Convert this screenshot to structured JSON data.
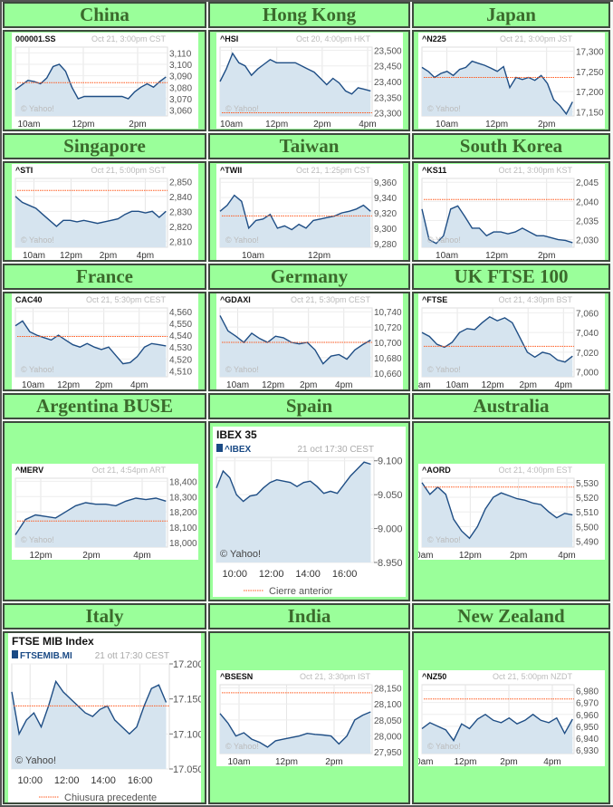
{
  "watermark": "© Yahoo!",
  "colors": {
    "cell_bg": "#9aff9a",
    "header_text": "#3b6a2c",
    "line": "#1f4e85",
    "fill": "#d6e4ef",
    "prev_close": "#ff5a1f"
  },
  "chart_data": [
    {
      "type": "area",
      "title": "China",
      "ticker": "000001.SS",
      "timestamp": "Oct 21, 3:00pm CST",
      "xlim": [
        9.5,
        15.1
      ],
      "xticks": [
        10,
        12,
        14
      ],
      "xlabels": [
        "10am",
        "12pm",
        "2pm"
      ],
      "ylim": [
        3055,
        3115
      ],
      "yticks": [
        3110,
        3100,
        3090,
        3080,
        3070,
        3060
      ],
      "ylabels": [
        "3,110",
        "3,100",
        "3,090",
        "3,080",
        "3,070",
        "3,060"
      ],
      "prev_close": 3084,
      "values": [
        3078,
        3082,
        3086,
        3085,
        3083,
        3088,
        3098,
        3100,
        3094,
        3080,
        3070,
        3072,
        3072,
        3072,
        3072,
        3072,
        3072,
        3072,
        3070,
        3076,
        3080,
        3083,
        3080,
        3085,
        3089
      ]
    },
    {
      "type": "area",
      "title": "Hong Kong",
      "ticker": "^HSI",
      "timestamp": "Oct 20, 4:00pm HKT",
      "xlim": [
        9.5,
        16.2
      ],
      "xticks": [
        10,
        12,
        14,
        16
      ],
      "xlabels": [
        "10am",
        "12pm",
        "2pm",
        "4pm"
      ],
      "ylim": [
        23290,
        23510
      ],
      "yticks": [
        23500,
        23450,
        23400,
        23350,
        23300
      ],
      "ylabels": [
        "23,500",
        "23,450",
        "23,400",
        "23,350",
        "23,300"
      ],
      "prev_close": 23300,
      "values": [
        23400,
        23440,
        23490,
        23460,
        23450,
        23420,
        23440,
        23455,
        23470,
        23460,
        23460,
        23460,
        23460,
        23450,
        23440,
        23430,
        23410,
        23390,
        23410,
        23395,
        23370,
        23360,
        23380,
        23375,
        23370
      ]
    },
    {
      "type": "area",
      "title": "Japan",
      "ticker": "^N225",
      "timestamp": "Oct 21, 3:00pm JST",
      "xlim": [
        9,
        15.1
      ],
      "xticks": [
        10,
        12,
        14
      ],
      "xlabels": [
        "10am",
        "12pm",
        "2pm"
      ],
      "ylim": [
        17140,
        17310
      ],
      "yticks": [
        17300,
        17250,
        17200,
        17150
      ],
      "ylabels": [
        "17,300",
        "17,250",
        "17,200",
        "17,150"
      ],
      "prev_close": 17235,
      "values": [
        17260,
        17250,
        17235,
        17245,
        17250,
        17240,
        17255,
        17260,
        17275,
        17270,
        17265,
        17258,
        17250,
        17262,
        17210,
        17235,
        17230,
        17235,
        17228,
        17240,
        17220,
        17180,
        17165,
        17145,
        17175
      ]
    },
    {
      "type": "area",
      "title": "Singapore",
      "ticker": "^STI",
      "timestamp": "Oct 21, 5:00pm SGT",
      "xlim": [
        9,
        17.2
      ],
      "xticks": [
        10,
        12,
        14,
        16
      ],
      "xlabels": [
        "10am",
        "12pm",
        "2pm",
        "4pm"
      ],
      "ylim": [
        2806,
        2852
      ],
      "yticks": [
        2850,
        2840,
        2830,
        2820,
        2810
      ],
      "ylabels": [
        "2,850",
        "2,840",
        "2,830",
        "2,820",
        "2,810"
      ],
      "prev_close": 2844,
      "values": [
        2840,
        2836,
        2834,
        2832,
        2828,
        2824,
        2820,
        2824,
        2824,
        2823,
        2824,
        2823,
        2822,
        2823,
        2824,
        2825,
        2828,
        2830,
        2830,
        2829,
        2830,
        2826,
        2830
      ]
    },
    {
      "type": "area",
      "title": "Taiwan",
      "ticker": "^TWII",
      "timestamp": "Oct 21, 1:25pm CST",
      "xlim": [
        9,
        13.6
      ],
      "xticks": [
        10,
        12
      ],
      "xlabels": [
        "10am",
        "12pm"
      ],
      "ylim": [
        9275,
        9365
      ],
      "yticks": [
        9360,
        9340,
        9320,
        9300,
        9280
      ],
      "ylabels": [
        "9,360",
        "9,340",
        "9,320",
        "9,300",
        "9,280"
      ],
      "prev_close": 9316,
      "values": [
        9322,
        9330,
        9343,
        9335,
        9300,
        9310,
        9312,
        9318,
        9300,
        9303,
        9298,
        9305,
        9300,
        9310,
        9312,
        9314,
        9316,
        9320,
        9322,
        9325,
        9330,
        9322
      ]
    },
    {
      "type": "area",
      "title": "South Korea",
      "ticker": "^KS11",
      "timestamp": "Oct 21, 3:00pm KST",
      "xlim": [
        9,
        15.1
      ],
      "xticks": [
        10,
        12,
        14
      ],
      "xlabels": [
        "10am",
        "12pm",
        "2pm"
      ],
      "ylim": [
        2028,
        2046
      ],
      "yticks": [
        2045,
        2040,
        2035,
        2030
      ],
      "ylabels": [
        "2,045",
        "2,040",
        "2,035",
        "2,030"
      ],
      "prev_close": 2040.5,
      "values": [
        2038,
        2030,
        2029,
        2031,
        2038,
        2038.8,
        2036,
        2033,
        2033,
        2031,
        2032,
        2032,
        2031.5,
        2032,
        2033,
        2032,
        2031,
        2031,
        2030.5,
        2030,
        2029.8,
        2029.2
      ]
    },
    {
      "type": "area",
      "title": "France",
      "ticker": "CAC40",
      "timestamp": "Oct 21, 5:30pm CEST",
      "xlim": [
        9,
        17.6
      ],
      "xticks": [
        10,
        12,
        14,
        16
      ],
      "xlabels": [
        "10am",
        "12pm",
        "2pm",
        "4pm"
      ],
      "ylim": [
        4505,
        4563
      ],
      "yticks": [
        4560,
        4550,
        4540,
        4530,
        4520,
        4510
      ],
      "ylabels": [
        "4,560",
        "4,550",
        "4,540",
        "4,530",
        "4,520",
        "4,510"
      ],
      "prev_close": 4539,
      "values": [
        4548,
        4552,
        4543,
        4540,
        4538,
        4536,
        4540,
        4536,
        4532,
        4530,
        4533,
        4530,
        4528,
        4530,
        4523,
        4516,
        4517,
        4522,
        4530,
        4533,
        4532,
        4531
      ]
    },
    {
      "type": "area",
      "title": "Germany",
      "ticker": "^GDAXI",
      "timestamp": "Oct 21, 5:30pm CEST",
      "xlim": [
        9,
        17.6
      ],
      "xticks": [
        10,
        12,
        14,
        16
      ],
      "xlabels": [
        "10am",
        "12pm",
        "2pm",
        "4pm"
      ],
      "ylim": [
        10655,
        10745
      ],
      "yticks": [
        10740,
        10720,
        10700,
        10680,
        10660
      ],
      "ylabels": [
        "10,740",
        "10,720",
        "10,700",
        "10,680",
        "10,660"
      ],
      "prev_close": 10700,
      "values": [
        10735,
        10715,
        10708,
        10700,
        10712,
        10705,
        10700,
        10708,
        10706,
        10700,
        10698,
        10700,
        10690,
        10672,
        10682,
        10684,
        10678,
        10690,
        10697,
        10703
      ]
    },
    {
      "type": "area",
      "title": "UK FTSE 100",
      "ticker": "^FTSE",
      "timestamp": "Oct 21, 4:30pm BST",
      "xlim": [
        8,
        16.6
      ],
      "xticks": [
        8,
        10,
        12,
        14,
        16
      ],
      "xlabels": [
        "8am",
        "10am",
        "12pm",
        "2pm",
        "4pm"
      ],
      "ylim": [
        6995,
        7065
      ],
      "yticks": [
        7060,
        7040,
        7020,
        7000
      ],
      "ylabels": [
        "7,060",
        "7,040",
        "7,020",
        "7,000"
      ],
      "prev_close": 7026,
      "values": [
        7040,
        7036,
        7028,
        7025,
        7030,
        7040,
        7044,
        7043,
        7050,
        7056,
        7052,
        7055,
        7050,
        7035,
        7020,
        7015,
        7020,
        7018,
        7012,
        7010,
        7016
      ]
    },
    {
      "type": "area",
      "title": "Argentina BUSE",
      "ticker": "^MERV",
      "timestamp": "Oct 21, 4:54pm  ART",
      "xlim": [
        11,
        17
      ],
      "xticks": [
        12,
        14,
        16
      ],
      "xlabels": [
        "12pm",
        "2pm",
        "4pm"
      ],
      "ylim": [
        17970,
        18420
      ],
      "yticks": [
        18400,
        18300,
        18200,
        18100,
        18000
      ],
      "ylabels": [
        "18,400",
        "18,300",
        "18,200",
        "18,100",
        "18,000"
      ],
      "prev_close": 18140,
      "values": [
        18050,
        18150,
        18180,
        18170,
        18160,
        18200,
        18240,
        18260,
        18250,
        18250,
        18240,
        18270,
        18290,
        18280,
        18290,
        18270
      ]
    },
    {
      "type": "area",
      "style": "large",
      "title": "Spain",
      "name": "IBEX 35",
      "ticker": "^IBEX",
      "timestamp": "21 oct 17:30 CEST",
      "legend": "Cierre anterior",
      "xlim": [
        9,
        17.6
      ],
      "xticks": [
        10,
        12,
        14,
        16
      ],
      "xlabels": [
        "10:00",
        "12:00",
        "14:00",
        "16:00"
      ],
      "ylim": [
        8950,
        9105
      ],
      "yticks": [
        9100,
        9050,
        9000,
        8950
      ],
      "ylabels": [
        "9.100",
        "9.050",
        "9.000",
        "8.950"
      ],
      "prev_close": null,
      "values": [
        9060,
        9085,
        9075,
        9050,
        9040,
        9048,
        9050,
        9060,
        9068,
        9072,
        9070,
        9068,
        9062,
        9068,
        9070,
        9062,
        9052,
        9055,
        9052,
        9065,
        9078,
        9088,
        9098,
        9095
      ]
    },
    {
      "type": "area",
      "title": "Australia",
      "ticker": "^AORD",
      "timestamp": "Oct 21, 4:00pm EST",
      "xlim": [
        10,
        16.3
      ],
      "xticks": [
        10,
        12,
        14,
        16
      ],
      "xlabels": [
        "10am",
        "12pm",
        "2pm",
        "4pm"
      ],
      "ylim": [
        5486,
        5533
      ],
      "yticks": [
        5530,
        5520,
        5510,
        5500,
        5490
      ],
      "ylabels": [
        "5,530",
        "5,520",
        "5,510",
        "5,500",
        "5,490"
      ],
      "prev_close": 5527,
      "values": [
        5530,
        5522,
        5527,
        5522,
        5505,
        5497,
        5492,
        5500,
        5512,
        5520,
        5523,
        5521,
        5519,
        5518,
        5516,
        5515,
        5510,
        5506,
        5509,
        5508
      ]
    },
    {
      "type": "area",
      "style": "large",
      "title": "Italy",
      "name": "FTSE MIB Index",
      "ticker": "FTSEMIB.MI",
      "timestamp": "21 ott 17:30 CEST",
      "legend": "Chiusura precedente",
      "xlim": [
        9,
        17.6
      ],
      "xticks": [
        10,
        12,
        14,
        16
      ],
      "xlabels": [
        "10:00",
        "12:00",
        "14:00",
        "16:00"
      ],
      "ylim": [
        17050,
        17200
      ],
      "yticks": [
        17200,
        17150,
        17100,
        17050
      ],
      "ylabels": [
        "17.200",
        "17.150",
        "17.100",
        "17.050"
      ],
      "prev_close": 17140,
      "values": [
        17160,
        17100,
        17120,
        17130,
        17110,
        17140,
        17175,
        17160,
        17150,
        17140,
        17130,
        17125,
        17135,
        17140,
        17120,
        17110,
        17100,
        17110,
        17140,
        17165,
        17170,
        17145
      ]
    },
    {
      "type": "area",
      "title": "India",
      "ticker": "^BSESN",
      "timestamp": "Oct 21, 3:30pm IST",
      "xlim": [
        9.2,
        15.6
      ],
      "xticks": [
        10,
        12,
        14
      ],
      "xlabels": [
        "10am",
        "12pm",
        "2pm"
      ],
      "ylim": [
        27945,
        28160
      ],
      "yticks": [
        28150,
        28100,
        28050,
        28000,
        27950
      ],
      "ylabels": [
        "28,150",
        "28,100",
        "28,050",
        "28,000",
        "27,950"
      ],
      "prev_close": 28135,
      "values": [
        28070,
        28040,
        28000,
        28010,
        27990,
        27980,
        27965,
        27985,
        27990,
        27995,
        28000,
        28008,
        28005,
        28003,
        28000,
        27975,
        28000,
        28050,
        28065,
        28075
      ]
    },
    {
      "type": "area",
      "title": "New Zealand",
      "ticker": "^NZ50",
      "timestamp": "Oct 21, 5:00pm NZDT",
      "xlim": [
        10,
        17
      ],
      "xticks": [
        10,
        12,
        14,
        16
      ],
      "xlabels": [
        "10am",
        "12pm",
        "2pm",
        "4pm"
      ],
      "ylim": [
        6927,
        6985
      ],
      "yticks": [
        6980,
        6970,
        6960,
        6950,
        6940,
        6930
      ],
      "ylabels": [
        "6,980",
        "6,970",
        "6,960",
        "6,950",
        "6,940",
        "6,930"
      ],
      "prev_close": 6973,
      "values": [
        6948,
        6953,
        6950,
        6947,
        6938,
        6952,
        6948,
        6956,
        6960,
        6955,
        6953,
        6957,
        6952,
        6955,
        6960,
        6955,
        6953,
        6957,
        6944,
        6956
      ]
    }
  ]
}
